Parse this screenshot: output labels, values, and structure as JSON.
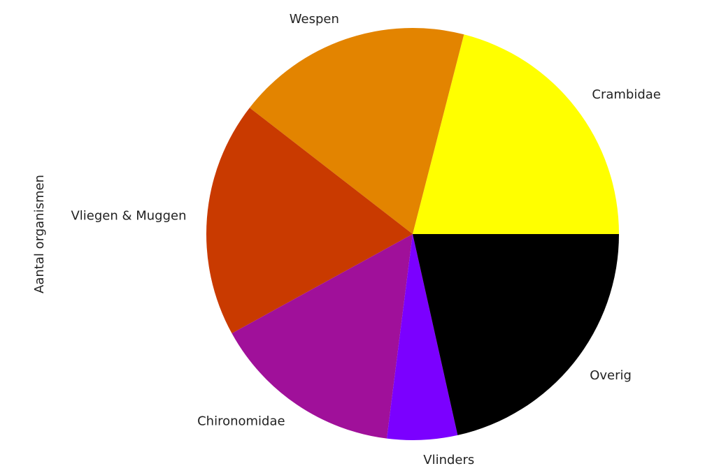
{
  "chart_data": {
    "type": "pie",
    "ylabel": "Aantal organismen",
    "categories": [
      "Crambidae",
      "Wespen",
      "Vliegen & Muggen",
      "Chironomidae",
      "Vlinders",
      "Overig"
    ],
    "values": [
      21,
      18.5,
      18.5,
      15,
      5.5,
      21.5
    ],
    "colors": [
      "#ffff00",
      "#e38400",
      "#c93a00",
      "#a0109a",
      "#7b00ff",
      "#000000"
    ],
    "start_angle": 0,
    "counterclock": true
  }
}
